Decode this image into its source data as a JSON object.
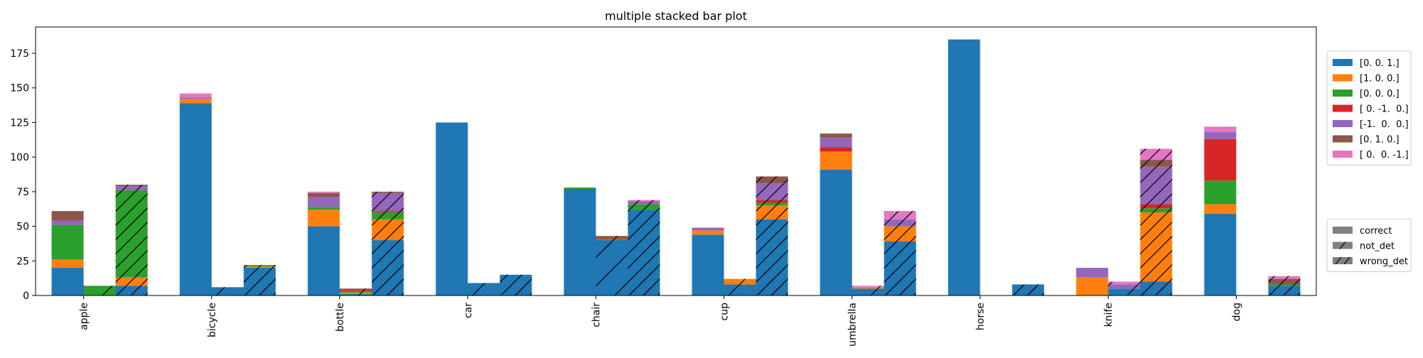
{
  "chart_data": {
    "type": "bar",
    "stacked": true,
    "title": "multiple stacked bar plot",
    "xlabel": "",
    "ylabel": "",
    "ylim": [
      0,
      194
    ],
    "yticks": [
      0,
      25,
      50,
      75,
      100,
      125,
      150,
      175
    ],
    "grid": false,
    "categories": [
      "apple",
      "bicycle",
      "bottle",
      "car",
      "chair",
      "cup",
      "umbrella",
      "horse",
      "knife",
      "dog"
    ],
    "groups": [
      "correct",
      "not_det",
      "wrong_det"
    ],
    "series": [
      {
        "name": "[0. 0. 1.]",
        "color": "#1f77b4",
        "values": {
          "correct": [
            20,
            139,
            50,
            125,
            77,
            44,
            91,
            185,
            0,
            59
          ],
          "not_det": [
            0,
            6,
            1,
            9,
            40,
            8,
            5,
            0,
            5,
            0
          ],
          "wrong_det": [
            7,
            20,
            40,
            15,
            62,
            55,
            39,
            8,
            10,
            7
          ]
        }
      },
      {
        "name": "[1. 0. 0.]",
        "color": "#ff7f0e",
        "values": {
          "correct": [
            6,
            3,
            12,
            0,
            0,
            3,
            13,
            0,
            13,
            7
          ],
          "not_det": [
            0,
            0,
            1,
            0,
            0,
            4,
            1,
            0,
            0,
            0
          ],
          "wrong_det": [
            6,
            1,
            15,
            0,
            0,
            10,
            11,
            0,
            50,
            0
          ]
        }
      },
      {
        "name": "[0. 0. 0.]",
        "color": "#2ca02c",
        "values": {
          "correct": [
            25,
            0,
            2,
            0,
            1,
            0,
            0,
            0,
            0,
            17
          ],
          "not_det": [
            7,
            0,
            1,
            0,
            1,
            0,
            0,
            0,
            0,
            0
          ],
          "wrong_det": [
            63,
            1,
            5,
            0,
            4,
            2,
            0,
            0,
            3,
            1
          ]
        }
      },
      {
        "name": "[ 0. -1.  0.]",
        "color": "#d62728",
        "values": {
          "correct": [
            0,
            0,
            0,
            0,
            0,
            0,
            3,
            0,
            0,
            30
          ],
          "not_det": [
            0,
            0,
            1,
            0,
            1,
            0,
            0,
            0,
            0,
            0
          ],
          "wrong_det": [
            0,
            0,
            1,
            0,
            0,
            2,
            0,
            0,
            3,
            0
          ]
        }
      },
      {
        "name": "[-1.  0.  0.]",
        "color": "#9467bd",
        "values": {
          "correct": [
            3,
            1,
            7,
            0,
            0,
            2,
            7,
            0,
            7,
            5
          ],
          "not_det": [
            0,
            0,
            0,
            0,
            0,
            0,
            0,
            0,
            3,
            0
          ],
          "wrong_det": [
            3,
            0,
            13,
            0,
            2,
            12,
            5,
            0,
            27,
            0
          ]
        }
      },
      {
        "name": "[0. 1. 0.]",
        "color": "#8c564b",
        "values": {
          "correct": [
            7,
            0,
            3,
            0,
            0,
            0,
            3,
            0,
            0,
            0
          ],
          "not_det": [
            0,
            0,
            1,
            0,
            1,
            0,
            0,
            0,
            0,
            0
          ],
          "wrong_det": [
            1,
            0,
            1,
            0,
            0,
            5,
            0,
            0,
            5,
            4
          ]
        }
      },
      {
        "name": "[ 0.  0. -1.]",
        "color": "#e377c2",
        "values": {
          "correct": [
            0,
            3,
            1,
            0,
            0,
            0,
            0,
            0,
            0,
            4
          ],
          "not_det": [
            0,
            0,
            0,
            0,
            0,
            0,
            1,
            0,
            2,
            0
          ],
          "wrong_det": [
            0,
            0,
            0,
            0,
            1,
            0,
            6,
            0,
            8,
            2
          ]
        }
      }
    ],
    "legend_series_placement": "outside right, upper",
    "legend_groups_placement": "outside right, lower",
    "legend_groups": [
      {
        "name": "correct",
        "hatch": "none"
      },
      {
        "name": "not_det",
        "hatch": "sparse"
      },
      {
        "name": "wrong_det",
        "hatch": "dense"
      }
    ]
  }
}
